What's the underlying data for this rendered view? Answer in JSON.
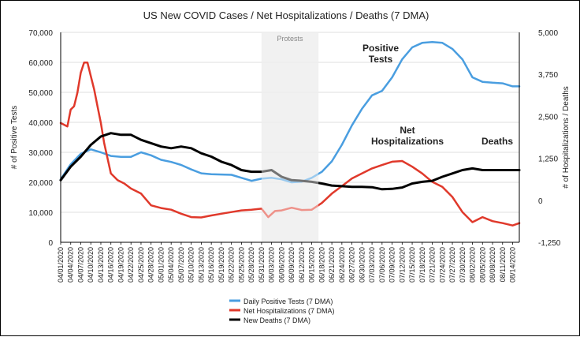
{
  "chart_data": {
    "type": "line",
    "title": "US New COVID Cases / Net Hospitalizations / Deaths (7 DMA)",
    "ylabel_left": "# of Positive Tests",
    "ylabel_right": "# of Hospitalizations / Deaths",
    "ylim_left": [
      0,
      70000
    ],
    "ylim_right": [
      -1250,
      5000
    ],
    "y_ticks_left": [
      "0",
      "10,000",
      "20,000",
      "30,000",
      "40,000",
      "50,000",
      "60,000",
      "70,000"
    ],
    "y_ticks_right": [
      "-1,250",
      "0",
      "1,250",
      "2,500",
      "3,750",
      "5,000"
    ],
    "x_tick_labels": [
      "04/01/2020",
      "04/04/2020",
      "04/07/2020",
      "04/10/2020",
      "04/13/2020",
      "04/16/2020",
      "04/19/2020",
      "04/22/2020",
      "04/25/2020",
      "04/28/2020",
      "05/01/2020",
      "05/04/2020",
      "05/07/2020",
      "05/10/2020",
      "05/13/2020",
      "05/16/2020",
      "05/19/2020",
      "05/22/2020",
      "05/25/2020",
      "05/28/2020",
      "05/31/2020",
      "06/03/2020",
      "06/06/2020",
      "06/09/2020",
      "06/12/2020",
      "06/15/2020",
      "06/18/2020",
      "06/21/2020",
      "06/24/2020",
      "06/27/2020",
      "06/30/2020",
      "07/03/2020",
      "07/06/2020",
      "07/09/2020",
      "07/12/2020",
      "07/15/2020",
      "07/18/2020",
      "07/21/2020",
      "07/24/2020",
      "07/27/2020",
      "07/30/2020",
      "08/02/2020",
      "08/05/2020",
      "08/08/2020",
      "08/11/2020",
      "08/14/2020"
    ],
    "shaded_region": {
      "label": "Protests",
      "start": "05/31/2020",
      "end": "06/17/2020",
      "color": "#e6e6e6"
    },
    "annotations": [
      {
        "text_lines": [
          "Positive",
          "Tests"
        ],
        "near": "07/05/2020"
      },
      {
        "text_lines": [
          "Net",
          "Hospitalizations"
        ],
        "near": "07/08/2020"
      },
      {
        "text_lines": [
          "Deaths"
        ],
        "near": "08/07/2020"
      }
    ],
    "legend": {
      "placement": "bottom",
      "entries": [
        {
          "label": "Daily Positive Tests (7 DMA)",
          "color": "#4a9ee0"
        },
        {
          "label": "Net Hospitalizations (7 DMA)",
          "color": "#e0392b"
        },
        {
          "label": "New Deaths (7 DMA)",
          "color": "#000000"
        }
      ]
    },
    "series": [
      {
        "name": "Daily Positive Tests (7 DMA)",
        "axis": "left",
        "color": "#4a9ee0",
        "x": [
          "04/01",
          "04/04",
          "04/07",
          "04/10",
          "04/13",
          "04/16",
          "04/19",
          "04/22",
          "04/25",
          "04/28",
          "05/01",
          "05/04",
          "05/07",
          "05/10",
          "05/13",
          "05/16",
          "05/19",
          "05/22",
          "05/25",
          "05/28",
          "05/31",
          "06/03",
          "06/06",
          "06/09",
          "06/12",
          "06/15",
          "06/18",
          "06/21",
          "06/24",
          "06/27",
          "06/30",
          "07/03",
          "07/06",
          "07/09",
          "07/12",
          "07/15",
          "07/18",
          "07/21",
          "07/24",
          "07/27",
          "07/30",
          "08/02",
          "08/05",
          "08/08",
          "08/11",
          "08/14",
          "08/16"
        ],
        "values": [
          21000,
          26000,
          29500,
          31000,
          30000,
          28800,
          28500,
          28500,
          30000,
          29000,
          27500,
          26800,
          25800,
          24300,
          23000,
          22700,
          22600,
          22500,
          21500,
          20500,
          21200,
          21500,
          21000,
          20000,
          20200,
          21500,
          23500,
          27000,
          32500,
          39000,
          44500,
          49000,
          50500,
          55000,
          61000,
          65000,
          66500,
          66800,
          66500,
          64500,
          61000,
          55000,
          53500,
          53200,
          53000,
          52000,
          52000
        ]
      },
      {
        "name": "Net Hospitalizations (7 DMA)",
        "axis": "right",
        "color": "#e0392b",
        "x": [
          "04/01",
          "04/02",
          "04/03",
          "04/04",
          "04/05",
          "04/06",
          "04/07",
          "04/08",
          "04/09",
          "04/10",
          "04/11",
          "04/12",
          "04/13",
          "04/14",
          "04/16",
          "04/18",
          "04/20",
          "04/22",
          "04/25",
          "04/28",
          "05/01",
          "05/04",
          "05/07",
          "05/10",
          "05/13",
          "05/16",
          "05/19",
          "05/22",
          "05/25",
          "05/28",
          "05/31",
          "06/02",
          "06/04",
          "06/06",
          "06/09",
          "06/12",
          "06/15",
          "06/18",
          "06/21",
          "06/24",
          "06/27",
          "06/30",
          "07/03",
          "07/06",
          "07/09",
          "07/12",
          "07/15",
          "07/18",
          "07/21",
          "07/24",
          "07/27",
          "07/30",
          "08/02",
          "08/05",
          "08/08",
          "08/11",
          "08/14",
          "08/16"
        ],
        "values": [
          2300,
          2250,
          2200,
          2700,
          2800,
          3200,
          3800,
          4100,
          4100,
          3700,
          3300,
          2800,
          2300,
          1700,
          800,
          600,
          500,
          350,
          200,
          -150,
          -230,
          -280,
          -400,
          -500,
          -510,
          -450,
          -400,
          -350,
          -300,
          -280,
          -250,
          -500,
          -320,
          -300,
          -220,
          -290,
          -280,
          -80,
          200,
          420,
          650,
          800,
          950,
          1050,
          1150,
          1170,
          1000,
          800,
          550,
          400,
          100,
          -350,
          -650,
          -500,
          -620,
          -680,
          -750,
          -680
        ]
      },
      {
        "name": "New Deaths (7 DMA)",
        "axis": "right",
        "color": "#000000",
        "x": [
          "04/01",
          "04/04",
          "04/07",
          "04/10",
          "04/13",
          "04/16",
          "04/19",
          "04/22",
          "04/25",
          "04/28",
          "05/01",
          "05/04",
          "05/07",
          "05/10",
          "05/13",
          "05/16",
          "05/19",
          "05/22",
          "05/25",
          "05/28",
          "05/31",
          "06/03",
          "06/06",
          "06/09",
          "06/12",
          "06/15",
          "06/18",
          "06/21",
          "06/24",
          "06/27",
          "06/30",
          "07/03",
          "07/06",
          "07/09",
          "07/12",
          "07/15",
          "07/18",
          "07/21",
          "07/24",
          "07/27",
          "07/30",
          "08/02",
          "08/05",
          "08/08",
          "08/11",
          "08/14",
          "08/16"
        ],
        "values": [
          600,
          1000,
          1300,
          1650,
          1900,
          2000,
          1950,
          1950,
          1800,
          1700,
          1600,
          1550,
          1600,
          1550,
          1400,
          1300,
          1150,
          1050,
          900,
          850,
          850,
          900,
          700,
          600,
          580,
          550,
          500,
          440,
          420,
          400,
          400,
          390,
          330,
          340,
          380,
          500,
          550,
          580,
          700,
          800,
          900,
          950,
          900,
          900,
          900,
          900,
          900
        ]
      }
    ]
  }
}
